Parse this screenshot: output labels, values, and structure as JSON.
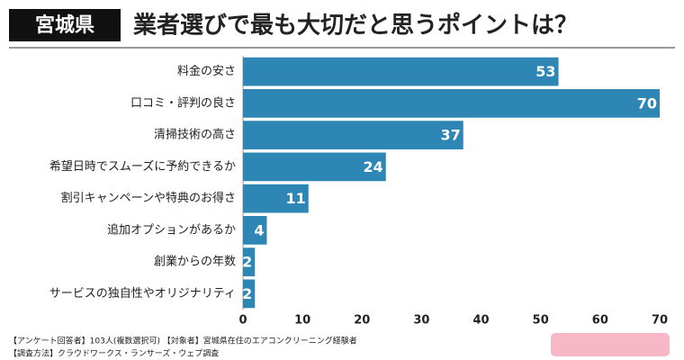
{
  "chart_data": {
    "type": "bar",
    "orientation": "horizontal",
    "badge": "宮城県",
    "title": "業者選びで最も大切だと思うポイントは？",
    "categories": [
      "料金の安さ",
      "口コミ・評判の良さ",
      "清掃技術の高さ",
      "希望日時でスムーズに予約できるか",
      "割引キャンペーンや特典のお得さ",
      "追加オプションがあるか",
      "創業からの年数",
      "サービスの独自性やオリジナリティ"
    ],
    "values": [
      53,
      70,
      37,
      24,
      11,
      4,
      2,
      2
    ],
    "color": "#2e86b5",
    "xlim": [
      0,
      70
    ],
    "xticks": [
      0,
      10,
      20,
      30,
      40,
      50,
      60,
      70
    ],
    "grid": false,
    "notes": [
      "【アンケート回答者】103人(複数選択可) 【対象者】宮城県在住のエアコンクリーニング経験者",
      "【調査方法】クラウドワークス・ランサーズ・ウェブ調査"
    ]
  }
}
